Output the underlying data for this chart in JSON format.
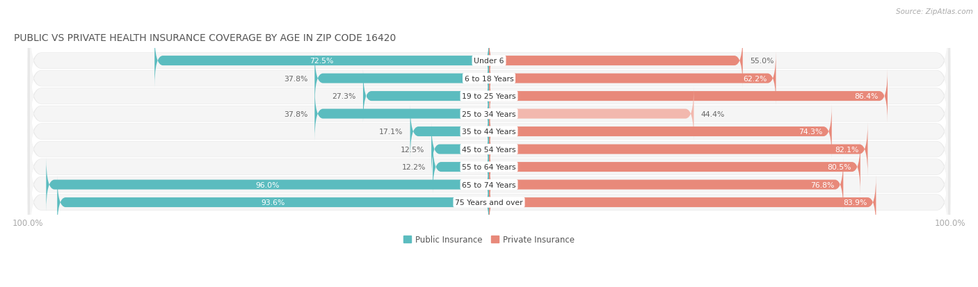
{
  "title": "PUBLIC VS PRIVATE HEALTH INSURANCE COVERAGE BY AGE IN ZIP CODE 16420",
  "source": "Source: ZipAtlas.com",
  "categories": [
    "Under 6",
    "6 to 18 Years",
    "19 to 25 Years",
    "25 to 34 Years",
    "35 to 44 Years",
    "45 to 54 Years",
    "55 to 64 Years",
    "65 to 74 Years",
    "75 Years and over"
  ],
  "public_values": [
    72.5,
    37.8,
    27.3,
    37.8,
    17.1,
    12.5,
    12.2,
    96.0,
    93.6
  ],
  "private_values": [
    55.0,
    62.2,
    86.4,
    44.4,
    74.3,
    82.1,
    80.5,
    76.8,
    83.9
  ],
  "public_color": "#5bbcbf",
  "private_color": "#e8897a",
  "private_color_light": "#f2b8ae",
  "row_bg_color": "#e8e8e8",
  "row_inner_bg": "#f5f5f5",
  "title_color": "#555555",
  "axis_label_color": "#aaaaaa",
  "max_value": 100.0,
  "legend_labels": [
    "Public Insurance",
    "Private Insurance"
  ],
  "figsize": [
    14.06,
    4.14
  ],
  "dpi": 100
}
